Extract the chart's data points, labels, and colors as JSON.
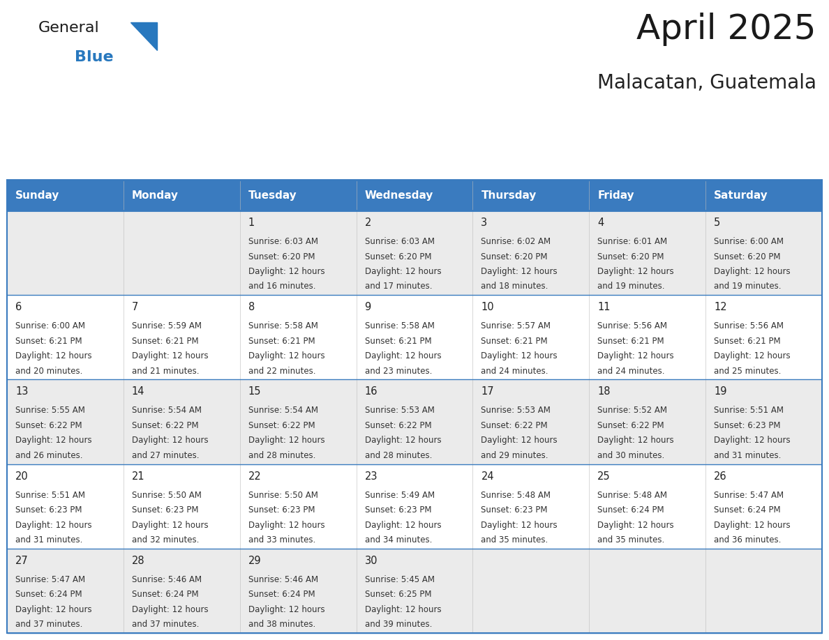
{
  "title": "April 2025",
  "subtitle": "Malacatan, Guatemala",
  "header_bg_color": "#3A7BBF",
  "header_text_color": "#FFFFFF",
  "row_bg_colors": [
    "#EBEBEB",
    "#FFFFFF",
    "#EBEBEB",
    "#FFFFFF",
    "#EBEBEB"
  ],
  "border_color": "#3A7BBF",
  "divider_color": "#3A7BBF",
  "day_headers": [
    "Sunday",
    "Monday",
    "Tuesday",
    "Wednesday",
    "Thursday",
    "Friday",
    "Saturday"
  ],
  "title_color": "#1a1a1a",
  "subtitle_color": "#222222",
  "cell_text_color": "#333333",
  "day_num_color": "#222222",
  "logo_general_color": "#1a1a1a",
  "logo_blue_color": "#2878BE",
  "logo_triangle_color": "#2878BE",
  "weeks": [
    [
      {
        "day": "",
        "info": ""
      },
      {
        "day": "",
        "info": ""
      },
      {
        "day": "1",
        "info": "Sunrise: 6:03 AM\nSunset: 6:20 PM\nDaylight: 12 hours\nand 16 minutes."
      },
      {
        "day": "2",
        "info": "Sunrise: 6:03 AM\nSunset: 6:20 PM\nDaylight: 12 hours\nand 17 minutes."
      },
      {
        "day": "3",
        "info": "Sunrise: 6:02 AM\nSunset: 6:20 PM\nDaylight: 12 hours\nand 18 minutes."
      },
      {
        "day": "4",
        "info": "Sunrise: 6:01 AM\nSunset: 6:20 PM\nDaylight: 12 hours\nand 19 minutes."
      },
      {
        "day": "5",
        "info": "Sunrise: 6:00 AM\nSunset: 6:20 PM\nDaylight: 12 hours\nand 19 minutes."
      }
    ],
    [
      {
        "day": "6",
        "info": "Sunrise: 6:00 AM\nSunset: 6:21 PM\nDaylight: 12 hours\nand 20 minutes."
      },
      {
        "day": "7",
        "info": "Sunrise: 5:59 AM\nSunset: 6:21 PM\nDaylight: 12 hours\nand 21 minutes."
      },
      {
        "day": "8",
        "info": "Sunrise: 5:58 AM\nSunset: 6:21 PM\nDaylight: 12 hours\nand 22 minutes."
      },
      {
        "day": "9",
        "info": "Sunrise: 5:58 AM\nSunset: 6:21 PM\nDaylight: 12 hours\nand 23 minutes."
      },
      {
        "day": "10",
        "info": "Sunrise: 5:57 AM\nSunset: 6:21 PM\nDaylight: 12 hours\nand 24 minutes."
      },
      {
        "day": "11",
        "info": "Sunrise: 5:56 AM\nSunset: 6:21 PM\nDaylight: 12 hours\nand 24 minutes."
      },
      {
        "day": "12",
        "info": "Sunrise: 5:56 AM\nSunset: 6:21 PM\nDaylight: 12 hours\nand 25 minutes."
      }
    ],
    [
      {
        "day": "13",
        "info": "Sunrise: 5:55 AM\nSunset: 6:22 PM\nDaylight: 12 hours\nand 26 minutes."
      },
      {
        "day": "14",
        "info": "Sunrise: 5:54 AM\nSunset: 6:22 PM\nDaylight: 12 hours\nand 27 minutes."
      },
      {
        "day": "15",
        "info": "Sunrise: 5:54 AM\nSunset: 6:22 PM\nDaylight: 12 hours\nand 28 minutes."
      },
      {
        "day": "16",
        "info": "Sunrise: 5:53 AM\nSunset: 6:22 PM\nDaylight: 12 hours\nand 28 minutes."
      },
      {
        "day": "17",
        "info": "Sunrise: 5:53 AM\nSunset: 6:22 PM\nDaylight: 12 hours\nand 29 minutes."
      },
      {
        "day": "18",
        "info": "Sunrise: 5:52 AM\nSunset: 6:22 PM\nDaylight: 12 hours\nand 30 minutes."
      },
      {
        "day": "19",
        "info": "Sunrise: 5:51 AM\nSunset: 6:23 PM\nDaylight: 12 hours\nand 31 minutes."
      }
    ],
    [
      {
        "day": "20",
        "info": "Sunrise: 5:51 AM\nSunset: 6:23 PM\nDaylight: 12 hours\nand 31 minutes."
      },
      {
        "day": "21",
        "info": "Sunrise: 5:50 AM\nSunset: 6:23 PM\nDaylight: 12 hours\nand 32 minutes."
      },
      {
        "day": "22",
        "info": "Sunrise: 5:50 AM\nSunset: 6:23 PM\nDaylight: 12 hours\nand 33 minutes."
      },
      {
        "day": "23",
        "info": "Sunrise: 5:49 AM\nSunset: 6:23 PM\nDaylight: 12 hours\nand 34 minutes."
      },
      {
        "day": "24",
        "info": "Sunrise: 5:48 AM\nSunset: 6:23 PM\nDaylight: 12 hours\nand 35 minutes."
      },
      {
        "day": "25",
        "info": "Sunrise: 5:48 AM\nSunset: 6:24 PM\nDaylight: 12 hours\nand 35 minutes."
      },
      {
        "day": "26",
        "info": "Sunrise: 5:47 AM\nSunset: 6:24 PM\nDaylight: 12 hours\nand 36 minutes."
      }
    ],
    [
      {
        "day": "27",
        "info": "Sunrise: 5:47 AM\nSunset: 6:24 PM\nDaylight: 12 hours\nand 37 minutes."
      },
      {
        "day": "28",
        "info": "Sunrise: 5:46 AM\nSunset: 6:24 PM\nDaylight: 12 hours\nand 37 minutes."
      },
      {
        "day": "29",
        "info": "Sunrise: 5:46 AM\nSunset: 6:24 PM\nDaylight: 12 hours\nand 38 minutes."
      },
      {
        "day": "30",
        "info": "Sunrise: 5:45 AM\nSunset: 6:25 PM\nDaylight: 12 hours\nand 39 minutes."
      },
      {
        "day": "",
        "info": ""
      },
      {
        "day": "",
        "info": ""
      },
      {
        "day": "",
        "info": ""
      }
    ]
  ]
}
